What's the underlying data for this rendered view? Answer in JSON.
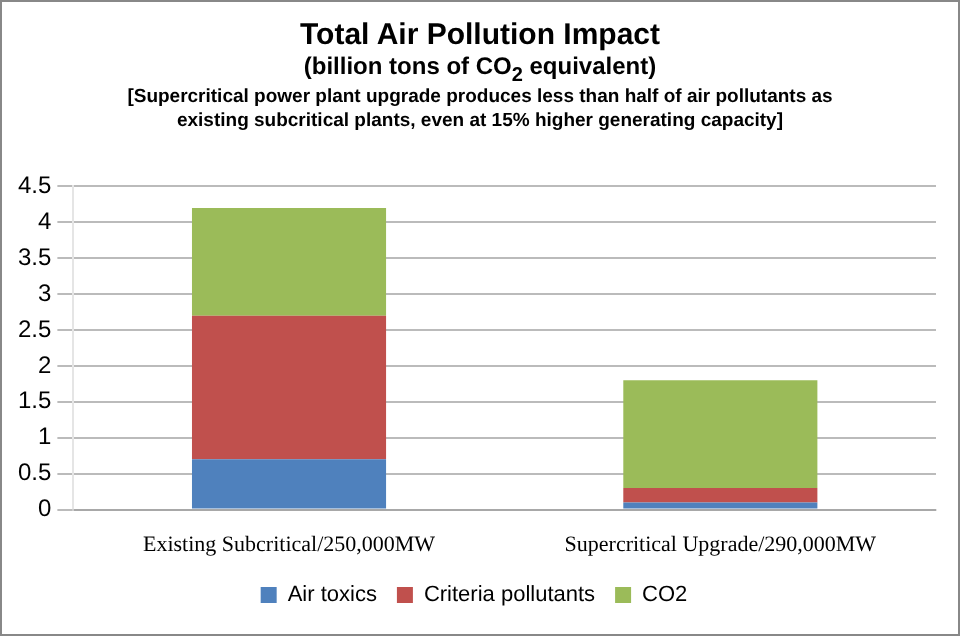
{
  "chart_data": {
    "type": "bar",
    "title": "Total Air Pollution Impact",
    "subtitle": "(billion tons of CO$_{2}$ equivalent)",
    "annotations": [
      "[Supercritical power plant upgrade produces less than half of air pollutants  as existing subcritical plants, even at 15% higher generating capacity]"
    ],
    "categories": [
      "Existing Subcritical/250,000MW",
      "Supercritical Upgrade/290,000MW"
    ],
    "series": [
      {
        "name": "Air toxics",
        "color": "#4f81bd",
        "values": [
          0.7,
          0.1
        ]
      },
      {
        "name": "Criteria pollutants",
        "color": "#c0504d",
        "values": [
          2.0,
          0.2
        ]
      },
      {
        "name": "CO2",
        "color": "#9bbb59",
        "values": [
          1.5,
          1.5
        ]
      }
    ],
    "stacked": true,
    "ylim": [
      0,
      4.5
    ],
    "yticks": [
      0,
      0.5,
      1,
      1.5,
      2,
      2.5,
      3,
      3.5,
      4,
      4.5
    ],
    "grid": "y",
    "legend": "bottom"
  }
}
